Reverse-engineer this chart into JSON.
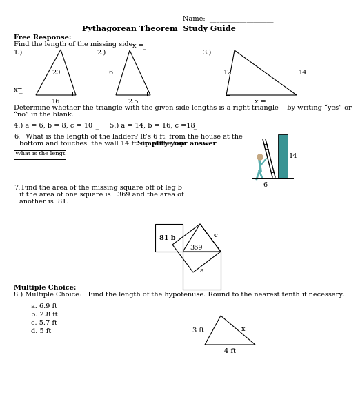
{
  "title": "Pythagorean Theorem  Study Guide",
  "name_label": "Name:  ___________________",
  "bg_color": "#ffffff",
  "text_color": "#000000",
  "free_response_header": "Free Response:",
  "free_response_sub": "Find the length of the missing side.",
  "p1_num": "1.)",
  "p1_hyp": "20",
  "p1_base": "16",
  "p1_leg": "x=̲̲̲̲",
  "p2_num": "2.)",
  "p2_left": "6",
  "p2_base": "2.5",
  "p2_ans": "x = ̲̲̲̲",
  "p3_num": "3.)",
  "p3_left": "12",
  "p3_right": "14",
  "p3_ans": "x = ̲̲̲̲",
  "det_text1": "Determine whether the triangle with the given side lengths is a right triangle    by writing “yes” or",
  "det_text2": "“no” in the blank.  .",
  "p4_text": "4.) a = 6, b = 8, c = 10   ̲̲̲̲̲̲̲̲     5.) a = 14, b = 16, c =18 ̲̲̲̲̲̲̲̲",
  "p6_num": "6.",
  "p6_text1": "   What is the length of the ladder? It’s 6 ft. from the house at the",
  "p6_text2": "bottom and touches  the wall 14 ft. up at the top.    ",
  "p6_bold": "Simplify your answer",
  "p6_box": "What is the lengt",
  "p6_label14": "14",
  "p6_label6": "6",
  "p7_num": "7.",
  "p7_text1": " Find the area of the missing square off of leg b",
  "p7_text2": "if the area of one square is   369 and the area of",
  "p7_text3": "another is  81.",
  "p7_369": "369",
  "p7_81b": "81 b",
  "p7_c": "c",
  "p7_a": "a",
  "mc_header": "Multiple Choice:",
  "p8_text": "8.) Multiple Choice:   Find the length of the hypotenuse. Round to the nearest tenth if necessary.",
  "mc_choices": [
    "a. 6.9 ft",
    "b. 2.8 ft",
    "c. 5.7 ft",
    "d. 5 ft"
  ],
  "p8_3ft": "3 ft",
  "p8_4ft": "4 ft",
  "p8_x": "x",
  "wall_color": "#3a9494",
  "person_color": "#5ab0b0"
}
